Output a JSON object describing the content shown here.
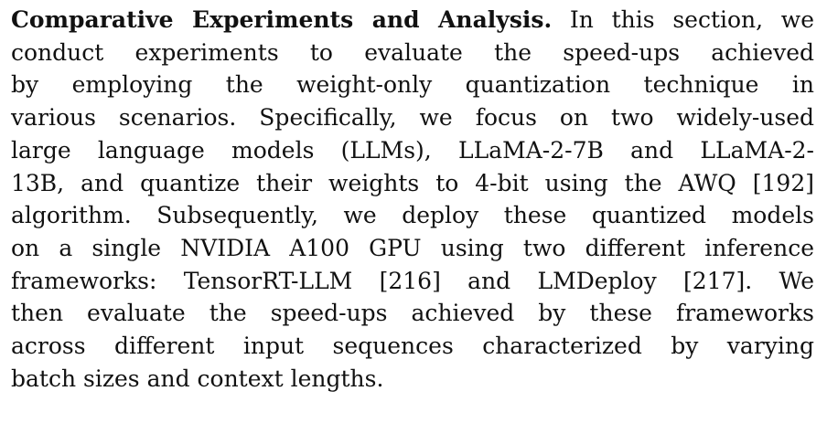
{
  "section": {
    "heading": "Comparative Experiments and Analysis.",
    "lines": [
      " In this section, we",
      "conduct experiments to evaluate the speed-ups achieved",
      "by employing the weight-only quantization technique in",
      "various scenarios. Specifically, we focus on two widely-used",
      "large language models (LLMs), LLaMA-2-7B and LLaMA-2-",
      "13B, and quantize their weights to 4-bit using the AWQ [192]",
      "algorithm. Subsequently, we deploy these quantized models",
      "on a single NVIDIA A100 GPU using two different inference",
      "frameworks: TensorRT-LLM [216] and LMDeploy [217]. We",
      "then evaluate the speed-ups achieved by these frameworks",
      "across different input sequences characterized by varying",
      "batch sizes and context lengths."
    ]
  }
}
